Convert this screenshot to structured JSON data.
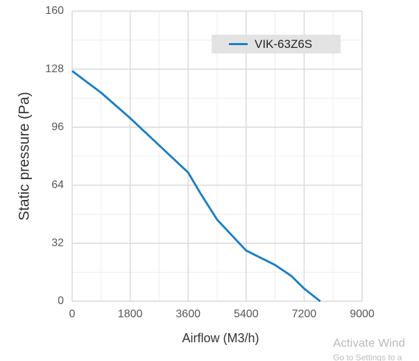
{
  "chart_data": {
    "type": "line",
    "x_label": "Airflow (M3/h)",
    "y_label": "Static pressure (Pa)",
    "x": [
      0,
      900,
      1800,
      2700,
      3600,
      4000,
      4500,
      5400,
      6300,
      6800,
      7200,
      7700
    ],
    "series": [
      {
        "name": "VIK-63Z6S",
        "color": "#1f7fbf",
        "values": [
          127,
          115,
          101,
          86,
          71,
          59,
          45,
          28,
          20,
          14,
          7,
          0
        ]
      }
    ],
    "xlim": [
      0,
      9000
    ],
    "xticks": [
      0,
      1800,
      3600,
      5400,
      7200,
      9000
    ],
    "ylim": [
      0,
      160
    ],
    "yticks": [
      0,
      32,
      64,
      96,
      128,
      160
    ],
    "grid": true,
    "legend": "upper right"
  },
  "watermark": [
    "Activate Wind",
    "Go to Settings to a"
  ]
}
